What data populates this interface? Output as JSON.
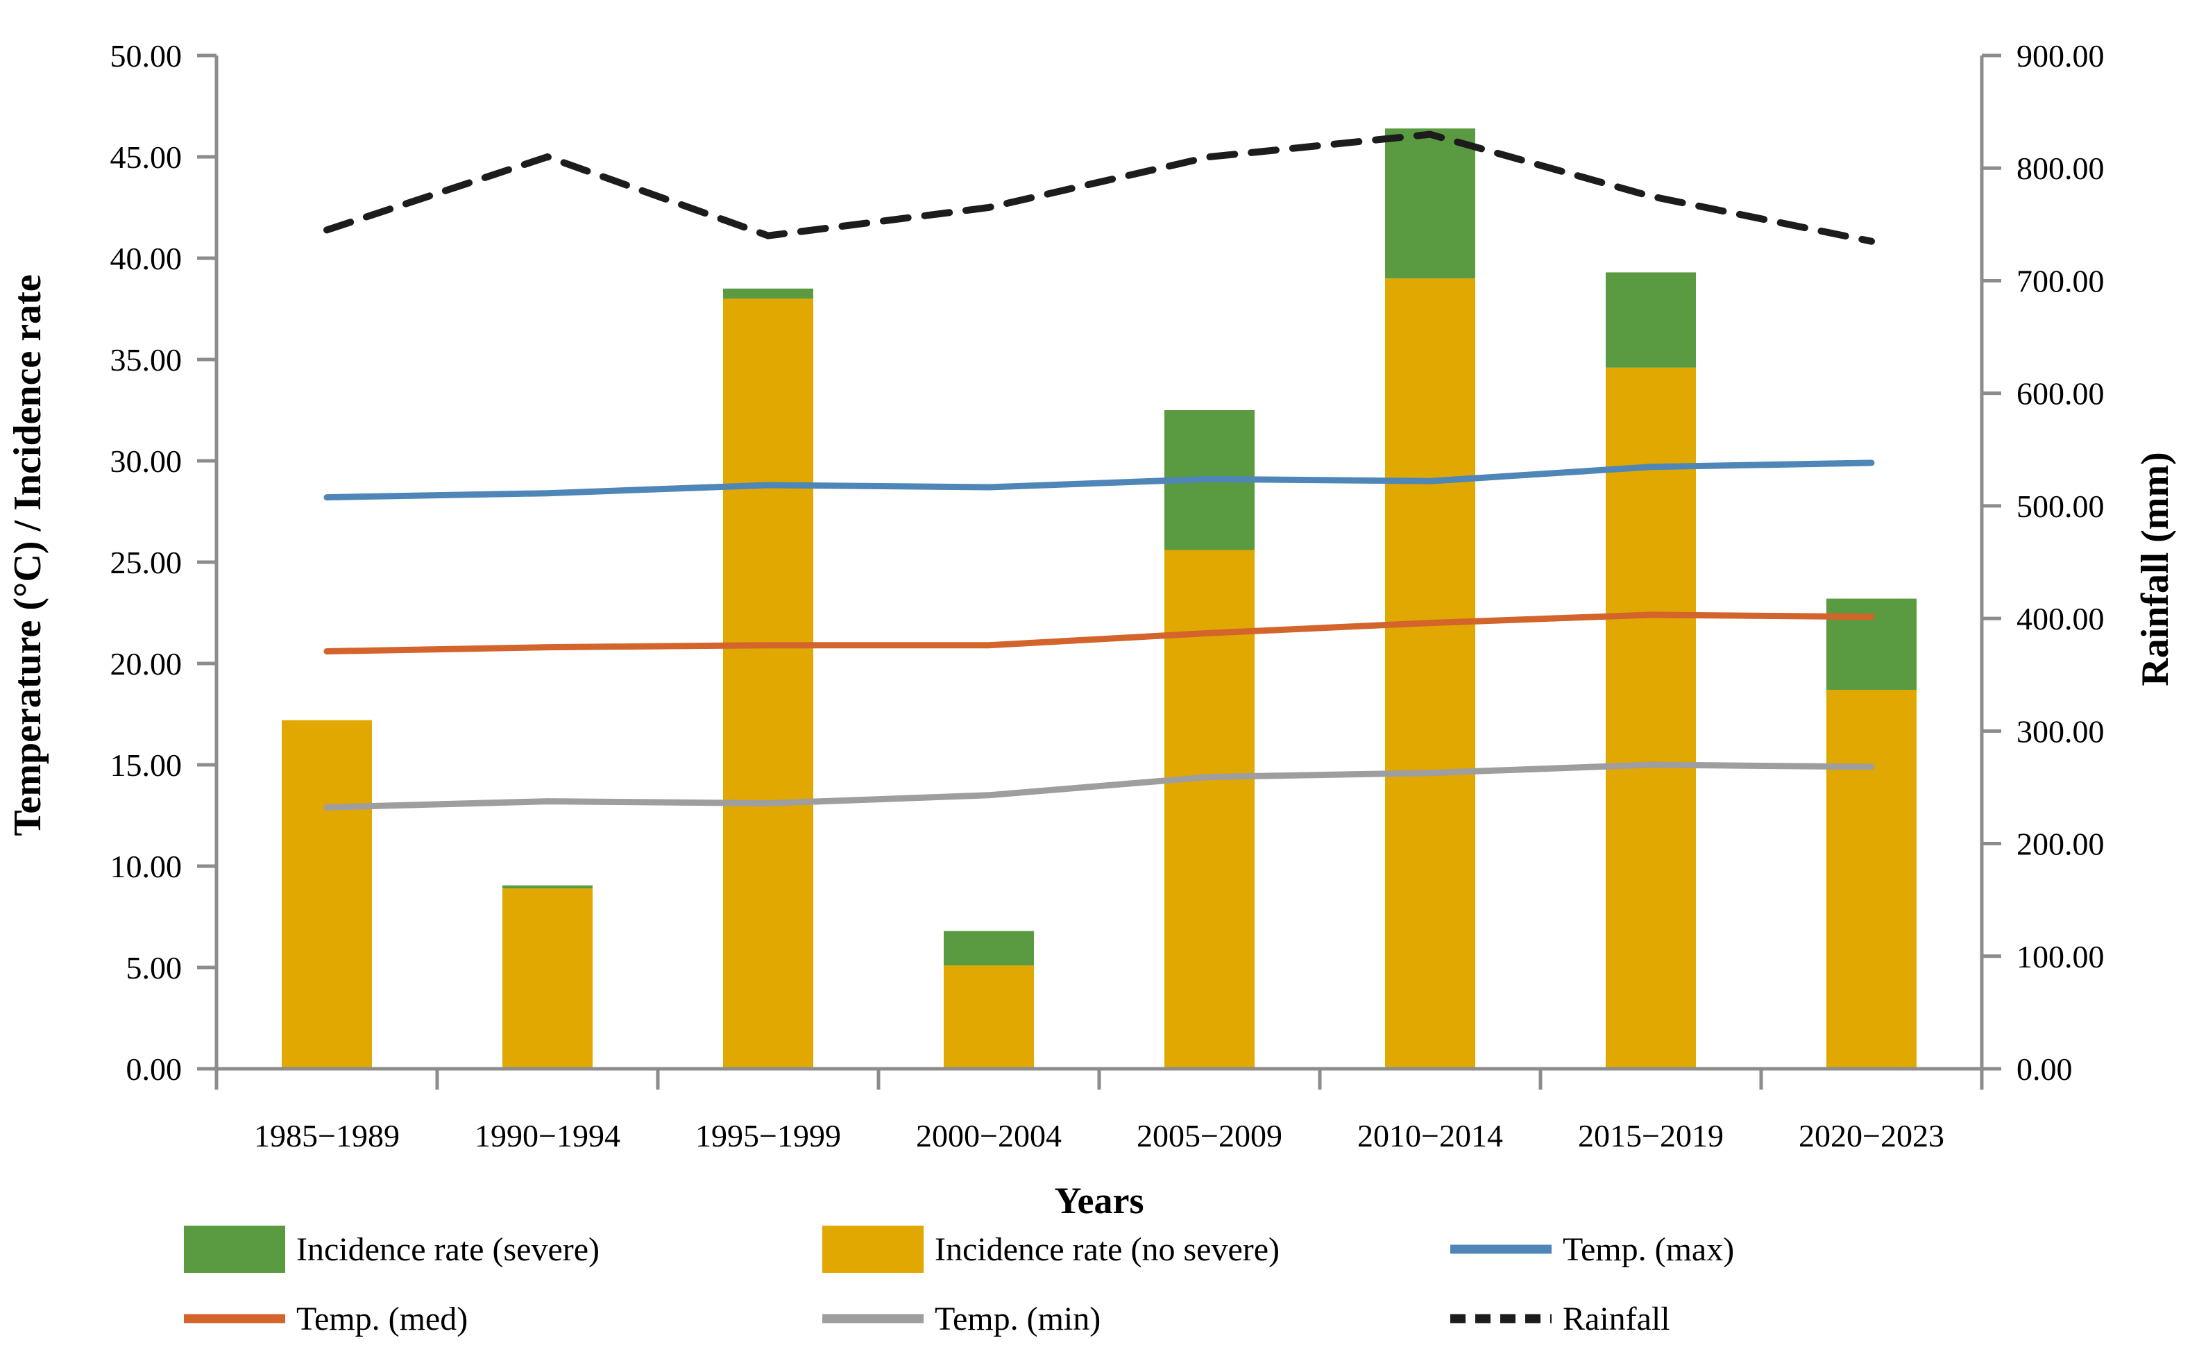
{
  "chart_data": {
    "type": "combo",
    "title": "",
    "xlabel": "Years",
    "ylabel_left": "Temperature (°C) /  Incidence rate",
    "ylabel_right": "Rainfall (mm)",
    "categories": [
      "1985−1989",
      "1990−1994",
      "1995−1999",
      "2000−2004",
      "2005−2009",
      "2010−2014",
      "2015−2019",
      "2020−2023"
    ],
    "y_left": {
      "min": 0,
      "max": 50,
      "step": 5,
      "tick_labels": [
        "0.00",
        "5.00",
        "10.00",
        "15.00",
        "20.00",
        "25.00",
        "30.00",
        "35.00",
        "40.00",
        "45.00",
        "50.00"
      ]
    },
    "y_right": {
      "min": 0,
      "max": 900,
      "step": 100,
      "tick_labels": [
        "0.00",
        "100.00",
        "200.00",
        "300.00",
        "400.00",
        "500.00",
        "600.00",
        "700.00",
        "800.00",
        "900.00"
      ]
    },
    "bar_series": [
      {
        "name": "Incidence rate (no severe)",
        "color": "#E0A800",
        "axis": "left",
        "values": [
          17.2,
          8.9,
          38.0,
          5.1,
          25.6,
          39.0,
          34.6,
          18.7
        ]
      },
      {
        "name": "Incidence rate (severe)",
        "color": "#5A9A41",
        "axis": "left",
        "values": [
          0.0,
          0.15,
          0.5,
          1.7,
          6.9,
          7.4,
          4.7,
          4.5
        ]
      }
    ],
    "line_series": [
      {
        "name": "Temp. (max)",
        "axis": "left",
        "color": "#4E86B8",
        "dashed": false,
        "values": [
          28.2,
          28.4,
          28.8,
          28.7,
          29.1,
          29.0,
          29.7,
          29.9
        ]
      },
      {
        "name": "Temp. (med)",
        "axis": "left",
        "color": "#D2642C",
        "dashed": false,
        "values": [
          20.6,
          20.8,
          20.9,
          20.9,
          21.5,
          22.0,
          22.4,
          22.3
        ]
      },
      {
        "name": "Temp. (min)",
        "axis": "left",
        "color": "#9E9E9E",
        "dashed": false,
        "values": [
          12.9,
          13.2,
          13.1,
          13.5,
          14.4,
          14.6,
          15.0,
          14.9
        ]
      },
      {
        "name": "Rainfall",
        "axis": "right",
        "color": "#1C1C1C",
        "dashed": true,
        "values": [
          745,
          810,
          740,
          765,
          810,
          830,
          775,
          735
        ]
      }
    ],
    "legend": [
      {
        "label": "Incidence rate (severe)",
        "swatch": "rect",
        "color": "#5A9A41"
      },
      {
        "label": "Incidence rate (no severe)",
        "swatch": "rect",
        "color": "#E0A800"
      },
      {
        "label": "Temp. (max)",
        "swatch": "line",
        "color": "#4E86B8"
      },
      {
        "label": "Temp. (med)",
        "swatch": "line",
        "color": "#D2642C"
      },
      {
        "label": "Temp. (min)",
        "swatch": "line",
        "color": "#9E9E9E"
      },
      {
        "label": "Rainfall",
        "swatch": "dash",
        "color": "#1C1C1C"
      }
    ],
    "grid": false,
    "legend_position": "bottom",
    "axis_color": "#8C8C8C"
  }
}
